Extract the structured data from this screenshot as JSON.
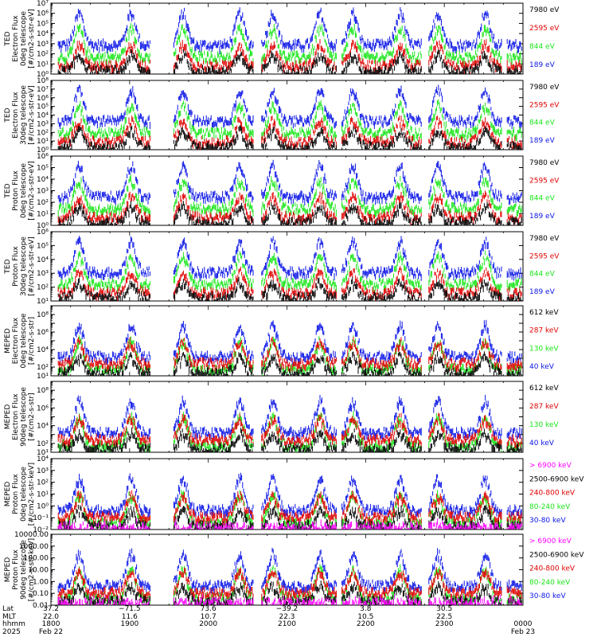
{
  "colors": {
    "black": "#000000",
    "red": "#e00000",
    "green": "#19e619",
    "blue": "#0a14e6",
    "magenta": "#ff00ff"
  },
  "chart_data": [
    {
      "type": "line",
      "ylabel": [
        "TED",
        "Electron Flux",
        "0deg telescope",
        "[#/cm2-s-str-eV]"
      ],
      "yscale": "log",
      "ylim": [
        1,
        10000000
      ],
      "yticks": [
        "10⁰",
        "10¹",
        "10²",
        "10³",
        "10⁴",
        "10⁵",
        "10⁶",
        "10⁷"
      ],
      "legend": [
        {
          "name": "7980 eV",
          "color": "black"
        },
        {
          "name": "2595 eV",
          "color": "red"
        },
        {
          "name": "844 eV",
          "color": "green"
        },
        {
          "name": "189 eV",
          "color": "blue"
        }
      ]
    },
    {
      "type": "line",
      "ylabel": [
        "TED",
        "Electron Flux",
        "30deg telescope",
        "[#/cm2-s-str-eV]"
      ],
      "yscale": "log",
      "ylim": [
        1,
        100000000
      ],
      "yticks": [
        "10⁰",
        "10¹",
        "10²",
        "10³",
        "10⁴",
        "10⁵",
        "10⁶",
        "10⁷",
        "10⁸"
      ],
      "legend": [
        {
          "name": "7980 eV",
          "color": "black"
        },
        {
          "name": "2595 eV",
          "color": "red"
        },
        {
          "name": "844 eV",
          "color": "green"
        },
        {
          "name": "189 eV",
          "color": "blue"
        }
      ]
    },
    {
      "type": "line",
      "ylabel": [
        "TED",
        "Proton Flux",
        "0deg telescope",
        "[#/cm2-s-str-eV]"
      ],
      "yscale": "log",
      "ylim": [
        1,
        1000000
      ],
      "yticks": [
        "10⁰",
        "10¹",
        "10²",
        "10³",
        "10⁴",
        "10⁵",
        "10⁶"
      ],
      "legend": [
        {
          "name": "7980 eV",
          "color": "black"
        },
        {
          "name": "2595 eV",
          "color": "red"
        },
        {
          "name": "844 eV",
          "color": "green"
        },
        {
          "name": "189 eV",
          "color": "blue"
        }
      ]
    },
    {
      "type": "line",
      "ylabel": [
        "TED",
        "Proton Flux",
        "30deg telescope",
        "[#/cm2-s-str-eV]"
      ],
      "yscale": "log",
      "ylim": [
        10,
        1000000
      ],
      "yticks": [
        "10¹",
        "10²",
        "10³",
        "10⁴",
        "10⁵",
        "10⁶"
      ],
      "legend": [
        {
          "name": "7980 eV",
          "color": "black"
        },
        {
          "name": "2595 eV",
          "color": "red"
        },
        {
          "name": "844 eV",
          "color": "green"
        },
        {
          "name": "189 eV",
          "color": "blue"
        }
      ]
    },
    {
      "type": "line",
      "ylabel": [
        "MEPED",
        "Electron Flux",
        "0deg telescope",
        "[#/cm2-s-str]"
      ],
      "yscale": "log",
      "ylim": [
        10,
        1000000000
      ],
      "yticks": [
        "10¹",
        "10²",
        "",
        "10⁴",
        "",
        "10⁶",
        "",
        "10⁸",
        ""
      ],
      "legend": [
        {
          "name": "612 keV",
          "color": "black"
        },
        {
          "name": "287 keV",
          "color": "red"
        },
        {
          "name": "130 keV",
          "color": "green"
        },
        {
          "name": "40 keV",
          "color": "blue"
        }
      ]
    },
    {
      "type": "line",
      "ylabel": [
        "MEPED",
        "Electron Flux",
        "90deg telescope",
        "[#/cm2-s-str]"
      ],
      "yscale": "log",
      "ylim": [
        10,
        1000000000
      ],
      "yticks": [
        "10¹",
        "10²",
        "",
        "10⁴",
        "",
        "10⁶",
        "",
        "10⁸",
        ""
      ],
      "legend": [
        {
          "name": "612 keV",
          "color": "black"
        },
        {
          "name": "287 keV",
          "color": "red"
        },
        {
          "name": "130 keV",
          "color": "green"
        },
        {
          "name": "40 keV",
          "color": "blue"
        }
      ]
    },
    {
      "type": "line",
      "ylabel": [
        "MEPED",
        "Proton Flux",
        "0deg telescope",
        "[#/cm2-s-str-keV]"
      ],
      "yscale": "log",
      "ylim": [
        0.01,
        10000
      ],
      "yticks": [
        "10⁻²",
        "10⁻¹",
        "10⁰",
        "10¹",
        "10²",
        "10³",
        "10⁴"
      ],
      "legend": [
        {
          "name": "> 6900 keV",
          "color": "magenta"
        },
        {
          "name": "2500-6900 keV",
          "color": "black"
        },
        {
          "name": "240-800 keV",
          "color": "red"
        },
        {
          "name": "80-240 keV",
          "color": "green"
        },
        {
          "name": "30-80 keV",
          "color": "blue"
        }
      ]
    },
    {
      "type": "line",
      "ylabel": [
        "MEPED",
        "Proton Flux",
        "90deg telescope",
        "[#/cm2-s-str-keV]"
      ],
      "yscale": "log",
      "ylim": [
        0.01,
        10000
      ],
      "yticks": [
        "0.01",
        "0.10",
        "1.00",
        "10.00",
        "100.00",
        "1000.00",
        "10000.00"
      ],
      "legend": [
        {
          "name": "> 6900 keV",
          "color": "magenta"
        },
        {
          "name": "2500-6900 keV",
          "color": "black"
        },
        {
          "name": "240-800 keV",
          "color": "red"
        },
        {
          "name": "80-240 keV",
          "color": "green"
        },
        {
          "name": "30-80 keV",
          "color": "blue"
        }
      ]
    }
  ],
  "x_axis": {
    "row_labels": [
      "Lat",
      "MLT",
      "hhmm",
      "2025"
    ],
    "ticks": [
      {
        "lat": "37.2",
        "mlt": "22.0",
        "hhmm": "1800",
        "date": "Feb 22"
      },
      {
        "lat": "−71.5",
        "mlt": "11.6",
        "hhmm": "1900",
        "date": ""
      },
      {
        "lat": "73.6",
        "mlt": "10.7",
        "hhmm": "2000",
        "date": ""
      },
      {
        "lat": "−39.2",
        "mlt": "22.3",
        "hhmm": "2100",
        "date": ""
      },
      {
        "lat": "3.8",
        "mlt": "10.5",
        "hhmm": "2200",
        "date": ""
      },
      {
        "lat": "30.5",
        "mlt": "22.5",
        "hhmm": "2300",
        "date": ""
      },
      {
        "lat": "",
        "mlt": "",
        "hhmm": "0000",
        "date": "Feb 23"
      }
    ]
  }
}
